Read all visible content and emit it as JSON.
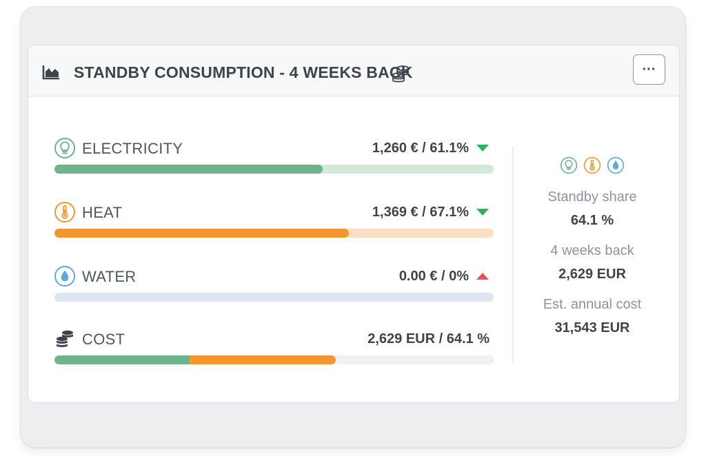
{
  "colors": {
    "electricity": "#6db38b",
    "electricity_track": "#d3ead9",
    "heat": "#f2962e",
    "heat_track": "#fbdfc4",
    "water": "#5aa9e0",
    "water_track": "#dce6ee",
    "cost_track": "#eef1f4",
    "trend_down": "#2fb05f",
    "trend_up": "#e8525c"
  },
  "header": {
    "icon": "area-chart-icon",
    "title": "STANDBY CONSUMPTION - 4 WEEKS BACK",
    "title_icon": "coins-stack-icon",
    "menu_label": "···"
  },
  "rows": [
    {
      "icon": "lightbulb-icon",
      "label": "ELECTRICITY",
      "value": "1,260 € / 61.1%",
      "trend": "down",
      "fill_percent": 61.1
    },
    {
      "icon": "thermometer-icon",
      "label": "HEAT",
      "value": "1,369 € / 67.1%",
      "trend": "down",
      "fill_percent": 67.1
    },
    {
      "icon": "water-drop-icon",
      "label": "WATER",
      "value": "0.00 € / 0%",
      "trend": "up",
      "fill_percent": 0
    },
    {
      "icon": "coins-icon",
      "label": "COST",
      "value": "2,629 EUR / 64.1 %",
      "segments": [
        {
          "name": "electricity",
          "percent": 30.7
        },
        {
          "name": "heat",
          "percent": 33.4
        }
      ]
    }
  ],
  "summary": {
    "icons": [
      "lightbulb-icon",
      "thermometer-icon",
      "water-drop-icon"
    ],
    "standby_share_label": "Standby share",
    "standby_share_value": "64.1 %",
    "weeks_label": "4 weeks back",
    "weeks_value": "2,629 EUR",
    "annual_label": "Est. annual cost",
    "annual_value": "31,543 EUR"
  }
}
